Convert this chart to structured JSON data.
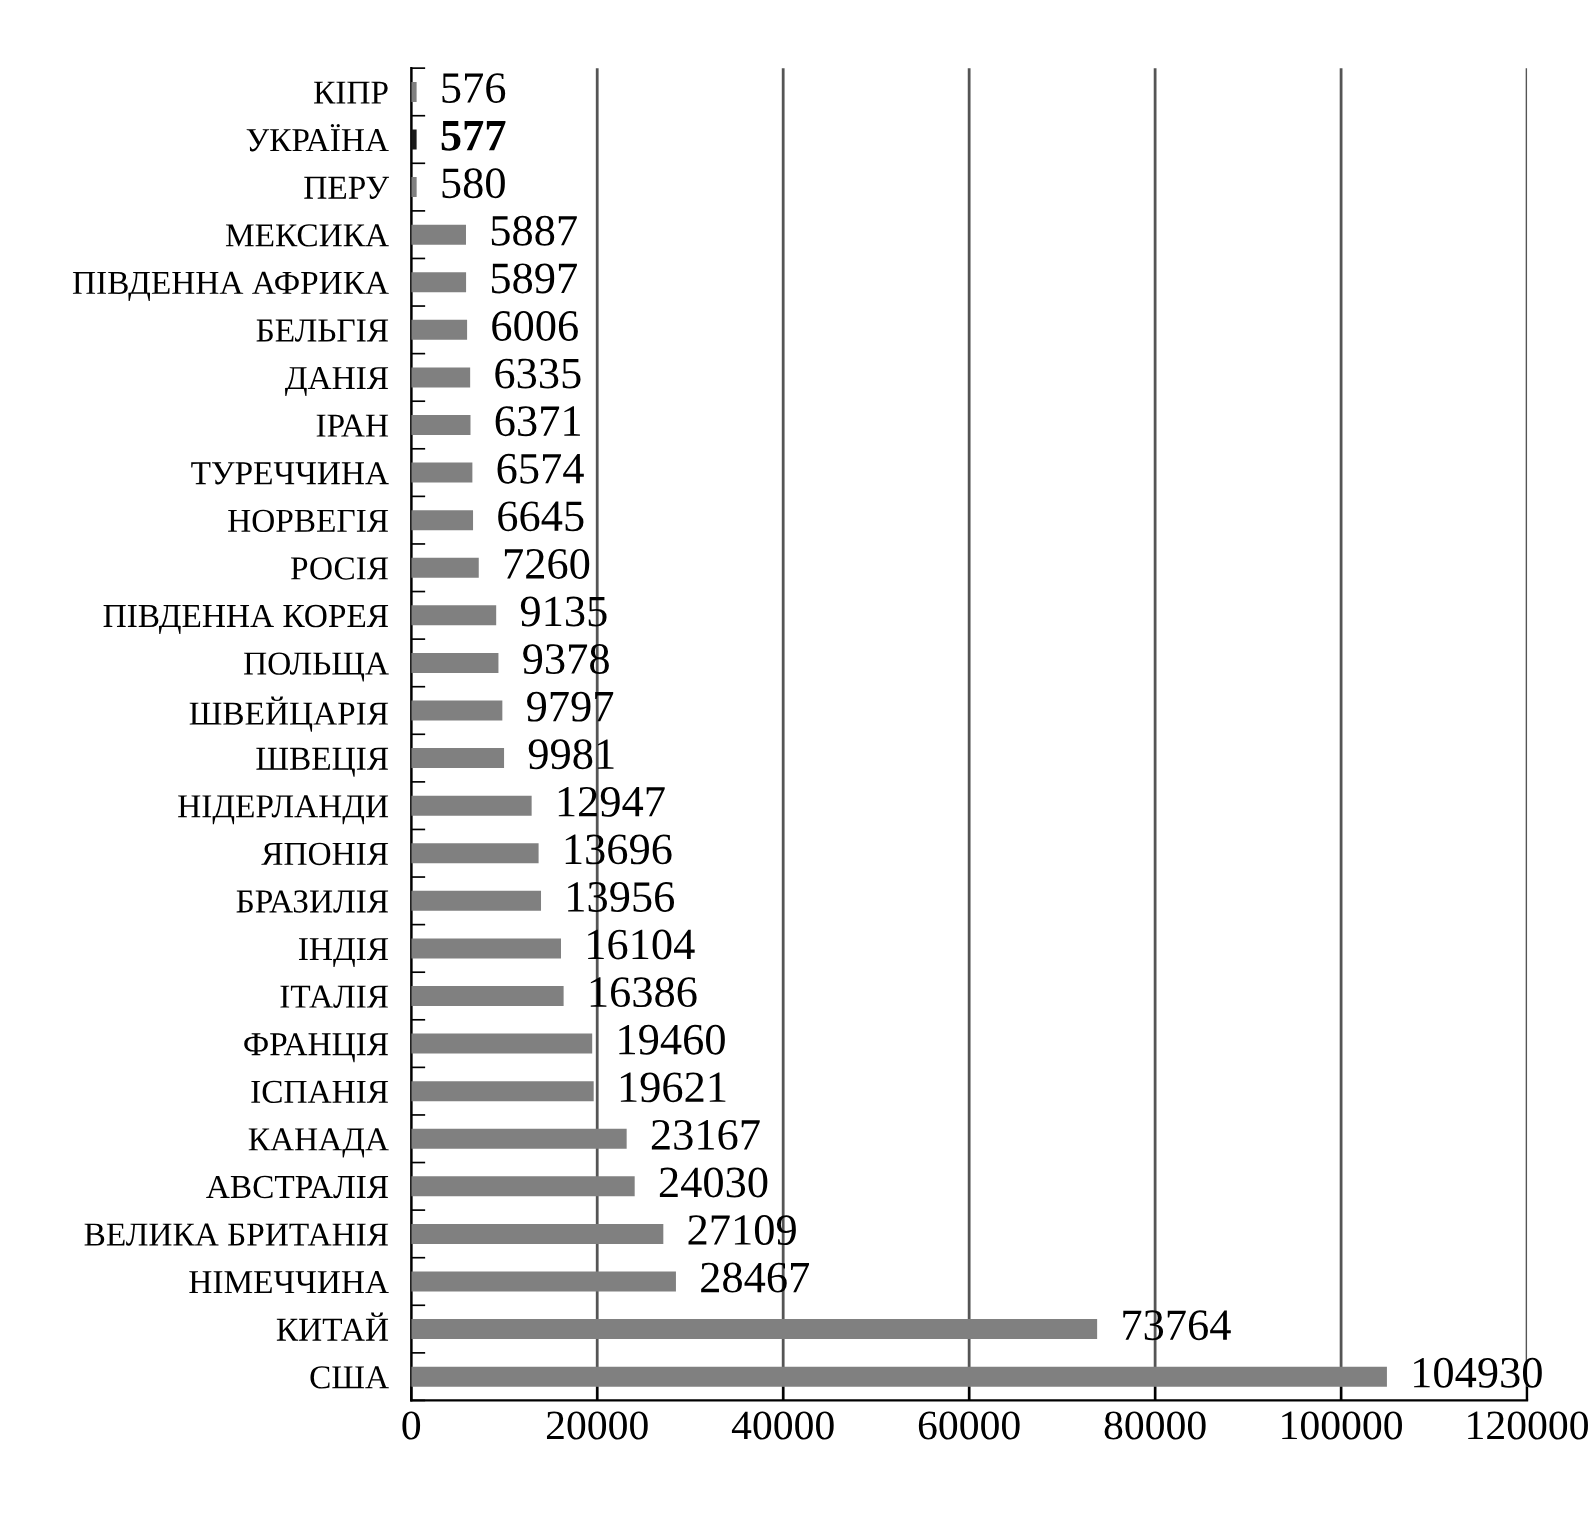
{
  "chart_data": {
    "type": "bar",
    "orientation": "horizontal",
    "categories": [
      "КІПР",
      "УКРАЇНА",
      "ПЕРУ",
      "МЕКСИКА",
      "ПІВДЕННА АФРИКА",
      "БЕЛЬГІЯ",
      "ДАНІЯ",
      "ІРАН",
      "ТУРЕЧЧИНА",
      "НОРВЕГІЯ",
      "РОСІЯ",
      "ПІВДЕННА КОРЕЯ",
      "ПОЛЬЩА",
      "ШВЕЙЦАРІЯ",
      "ШВЕЦІЯ",
      "НІДЕРЛАНДИ",
      "ЯПОНІЯ",
      "БРАЗИЛІЯ",
      "ІНДІЯ",
      "ІТАЛІЯ",
      "ФРАНЦІЯ",
      "ІСПАНІЯ",
      "КАНАДА",
      "АВСТРАЛІЯ",
      "ВЕЛИКА БРИТАНІЯ",
      "НІМЕЧЧИНА",
      "КИТАЙ",
      "США"
    ],
    "values": [
      576,
      577,
      580,
      5887,
      5897,
      6006,
      6335,
      6371,
      6574,
      6645,
      7260,
      9135,
      9378,
      9797,
      9981,
      12947,
      13696,
      13956,
      16104,
      16386,
      19460,
      19621,
      23167,
      24030,
      27109,
      28467,
      73764,
      104930
    ],
    "colors": [
      "#808080",
      "#1a1a1a",
      "#808080",
      "#808080",
      "#808080",
      "#808080",
      "#808080",
      "#808080",
      "#808080",
      "#808080",
      "#808080",
      "#808080",
      "#808080",
      "#808080",
      "#808080",
      "#808080",
      "#808080",
      "#808080",
      "#808080",
      "#808080",
      "#808080",
      "#808080",
      "#808080",
      "#808080",
      "#808080",
      "#808080",
      "#808080",
      "#808080"
    ],
    "xlim": [
      0,
      120000
    ],
    "xticks": [
      0,
      20000,
      40000,
      60000,
      80000,
      100000,
      120000
    ],
    "grid": "x",
    "data_labels": true
  }
}
